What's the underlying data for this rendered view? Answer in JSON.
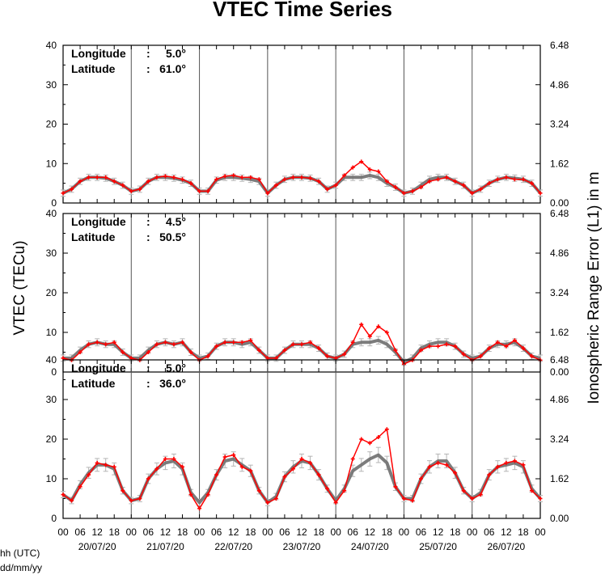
{
  "title": "VTEC Time Series",
  "ylabel_left": "VTEC (TECu)",
  "ylabel_right": "Ionospheric Range Error (L1) in m",
  "xlabel_hours": "hh (UTC)",
  "xlabel_dates": "dd/mm/yy",
  "colors": {
    "observed": "#ff0000",
    "reference": "#6e6e6e",
    "reference_error": "#b4b4b4"
  },
  "hour_ticks": [
    "00",
    "06",
    "12",
    "18"
  ],
  "last_hour_tick": "00",
  "date_labels": [
    "20/07/20",
    "21/07/20",
    "22/07/20",
    "23/07/20",
    "24/07/20",
    "25/07/20",
    "26/07/20"
  ],
  "left_ticks": [
    "0",
    "10",
    "20",
    "30",
    "40"
  ],
  "right_ticks": [
    "0.00",
    "1.62",
    "3.24",
    "4.86",
    "6.48"
  ],
  "panels": [
    {
      "lon_label": "Longitude",
      "lon_value": "5.0°",
      "lat_label": "Latitude",
      "lat_value": "61.0°"
    },
    {
      "lon_label": "Longitude",
      "lon_value": "4.5°",
      "lat_label": "Latitude",
      "lat_value": "50.5°"
    },
    {
      "lon_label": "Longitude",
      "lon_value": "5.0°",
      "lat_label": "Latitude",
      "lat_value": "36.0°"
    }
  ],
  "chart_data": {
    "type": "line",
    "title": "VTEC Time Series",
    "x_unit": "hours since 20/07/20 00 UTC",
    "xlim": [
      0,
      168
    ],
    "ylim": [
      0,
      40
    ],
    "y2lim": [
      0,
      6.48
    ],
    "y2label": "Ionospheric Range Error (L1) in m",
    "grid": "vertical lines at day boundaries",
    "panels": [
      {
        "longitude": "5.0°",
        "latitude": "61.0°",
        "series": [
          {
            "role": "observed",
            "x": [
              0,
              3,
              6,
              9,
              12,
              15,
              18,
              21,
              24,
              27,
              30,
              33,
              36,
              39,
              42,
              45,
              48,
              51,
              54,
              57,
              60,
              63,
              66,
              69,
              72,
              75,
              78,
              81,
              84,
              87,
              90,
              93,
              96,
              99,
              102,
              105,
              108,
              111,
              114,
              117,
              120,
              123,
              126,
              129,
              132,
              135,
              138,
              141,
              144,
              147,
              150,
              153,
              156,
              159,
              162,
              165,
              168
            ],
            "y": [
              2.5,
              3.5,
              5.5,
              6.5,
              6.5,
              6.5,
              5.5,
              4.5,
              3.0,
              3.5,
              5.5,
              6.5,
              6.8,
              6.5,
              6.0,
              5.0,
              3.0,
              3.0,
              6.0,
              6.8,
              7.0,
              6.5,
              6.5,
              6.0,
              2.5,
              4.5,
              6.0,
              6.5,
              6.5,
              6.3,
              5.5,
              3.5,
              4.5,
              7.0,
              9.0,
              10.5,
              8.5,
              8.0,
              5.5,
              4.0,
              2.5,
              3.0,
              4.0,
              5.5,
              6.0,
              6.5,
              5.5,
              4.5,
              2.5,
              3.5,
              5.0,
              6.0,
              6.5,
              6.0,
              6.0,
              5.0,
              2.5
            ]
          },
          {
            "role": "reference",
            "x": [
              0,
              3,
              6,
              9,
              12,
              15,
              18,
              21,
              24,
              27,
              30,
              33,
              36,
              39,
              42,
              45,
              48,
              51,
              54,
              57,
              60,
              63,
              66,
              69,
              72,
              75,
              78,
              81,
              84,
              87,
              90,
              93,
              96,
              99,
              102,
              105,
              108,
              111,
              114,
              117,
              120,
              123,
              126,
              129,
              132,
              135,
              138,
              141,
              144,
              147,
              150,
              153,
              156,
              159,
              162,
              165,
              168
            ],
            "y": [
              2.5,
              3.5,
              5.5,
              6.5,
              6.5,
              6.3,
              5.5,
              4.5,
              3.0,
              3.5,
              5.5,
              6.5,
              6.5,
              6.3,
              5.8,
              5.0,
              3.0,
              3.0,
              5.8,
              6.5,
              6.5,
              6.3,
              6.0,
              5.5,
              2.5,
              4.5,
              6.0,
              6.5,
              6.5,
              6.3,
              5.5,
              3.5,
              4.5,
              6.5,
              6.5,
              6.5,
              7.0,
              6.5,
              5.0,
              4.0,
              2.5,
              3.0,
              4.5,
              6.0,
              6.5,
              6.5,
              5.5,
              4.5,
              2.5,
              3.5,
              5.0,
              6.0,
              6.5,
              6.3,
              6.0,
              5.0,
              2.5
            ]
          }
        ]
      },
      {
        "longitude": "4.5°",
        "latitude": "50.5°",
        "series": [
          {
            "role": "observed",
            "x": [
              0,
              3,
              6,
              9,
              12,
              15,
              18,
              21,
              24,
              27,
              30,
              33,
              36,
              39,
              42,
              45,
              48,
              51,
              54,
              57,
              60,
              63,
              66,
              69,
              72,
              75,
              78,
              81,
              84,
              87,
              90,
              93,
              96,
              99,
              102,
              105,
              108,
              111,
              114,
              117,
              120,
              123,
              126,
              129,
              132,
              135,
              138,
              141,
              144,
              147,
              150,
              153,
              156,
              159,
              162,
              165,
              168
            ],
            "y": [
              3.5,
              3.0,
              5.0,
              7.0,
              7.5,
              7.0,
              7.5,
              5.0,
              3.5,
              3.0,
              5.0,
              7.0,
              7.5,
              7.0,
              7.5,
              5.0,
              3.0,
              4.0,
              6.5,
              7.5,
              7.5,
              7.5,
              8.0,
              5.5,
              3.5,
              3.5,
              5.5,
              7.0,
              7.0,
              7.5,
              6.0,
              4.0,
              3.5,
              4.5,
              7.5,
              12.0,
              9.0,
              11.5,
              10.0,
              5.5,
              2.0,
              3.0,
              5.5,
              6.5,
              6.5,
              7.0,
              6.5,
              4.5,
              3.0,
              4.0,
              6.0,
              7.5,
              6.5,
              8.0,
              6.0,
              4.0,
              3.0
            ]
          },
          {
            "role": "reference",
            "x": [
              0,
              3,
              6,
              9,
              12,
              15,
              18,
              21,
              24,
              27,
              30,
              33,
              36,
              39,
              42,
              45,
              48,
              51,
              54,
              57,
              60,
              63,
              66,
              69,
              72,
              75,
              78,
              81,
              84,
              87,
              90,
              93,
              96,
              99,
              102,
              105,
              108,
              111,
              114,
              117,
              120,
              123,
              126,
              129,
              132,
              135,
              138,
              141,
              144,
              147,
              150,
              153,
              156,
              159,
              162,
              165,
              168
            ],
            "y": [
              3.5,
              3.5,
              5.5,
              7.0,
              7.5,
              7.0,
              7.0,
              5.0,
              3.5,
              3.5,
              5.5,
              7.0,
              7.5,
              7.0,
              7.5,
              5.0,
              3.5,
              4.0,
              6.5,
              7.5,
              7.5,
              7.0,
              7.5,
              5.5,
              3.5,
              3.5,
              5.5,
              7.0,
              7.0,
              7.0,
              6.0,
              4.0,
              3.5,
              4.5,
              7.0,
              7.5,
              7.5,
              8.0,
              7.0,
              5.0,
              2.5,
              3.5,
              6.0,
              7.0,
              7.5,
              7.5,
              6.5,
              4.5,
              3.5,
              4.0,
              6.0,
              7.0,
              7.0,
              7.5,
              6.0,
              4.0,
              3.5
            ]
          }
        ]
      },
      {
        "longitude": "5.0°",
        "latitude": "36.0°",
        "series": [
          {
            "role": "observed",
            "x": [
              0,
              3,
              6,
              9,
              12,
              15,
              18,
              21,
              24,
              27,
              30,
              33,
              36,
              39,
              42,
              45,
              48,
              51,
              54,
              57,
              60,
              63,
              66,
              69,
              72,
              75,
              78,
              81,
              84,
              87,
              90,
              93,
              96,
              99,
              102,
              105,
              108,
              111,
              114,
              117,
              120,
              123,
              126,
              129,
              132,
              135,
              138,
              141,
              144,
              147,
              150,
              153,
              156,
              159,
              162,
              165,
              168
            ],
            "y": [
              6.0,
              4.5,
              8.0,
              11.0,
              14.0,
              13.5,
              13.0,
              7.0,
              4.5,
              5.0,
              10.0,
              12.5,
              15.0,
              15.0,
              13.0,
              6.0,
              2.5,
              6.0,
              11.0,
              15.5,
              16.0,
              13.0,
              12.0,
              7.0,
              4.0,
              5.0,
              10.5,
              12.5,
              15.0,
              14.0,
              11.0,
              7.5,
              4.0,
              7.0,
              15.0,
              20.0,
              19.0,
              20.5,
              22.5,
              8.0,
              5.0,
              4.5,
              10.0,
              13.0,
              14.0,
              13.5,
              11.5,
              7.0,
              5.0,
              6.0,
              11.0,
              13.0,
              14.0,
              14.5,
              13.5,
              7.0,
              5.0
            ]
          },
          {
            "role": "reference",
            "x": [
              0,
              3,
              6,
              9,
              12,
              15,
              18,
              21,
              24,
              27,
              30,
              33,
              36,
              39,
              42,
              45,
              48,
              51,
              54,
              57,
              60,
              63,
              66,
              69,
              72,
              75,
              78,
              81,
              84,
              87,
              90,
              93,
              96,
              99,
              102,
              105,
              108,
              111,
              114,
              117,
              120,
              123,
              126,
              129,
              132,
              135,
              138,
              141,
              144,
              147,
              150,
              153,
              156,
              159,
              162,
              165,
              168
            ],
            "y": [
              6.0,
              4.5,
              8.5,
              11.5,
              13.5,
              13.5,
              12.5,
              7.0,
              4.5,
              5.0,
              10.0,
              12.5,
              14.0,
              14.5,
              12.5,
              6.5,
              4.0,
              6.5,
              11.0,
              14.5,
              15.0,
              13.5,
              12.0,
              7.0,
              4.0,
              5.5,
              10.5,
              13.0,
              14.5,
              14.0,
              11.0,
              7.5,
              4.5,
              7.5,
              12.0,
              13.5,
              15.0,
              16.0,
              14.0,
              8.0,
              5.0,
              5.0,
              10.0,
              13.0,
              14.5,
              14.5,
              11.5,
              7.0,
              5.0,
              6.5,
              11.0,
              13.0,
              13.5,
              14.0,
              13.0,
              7.5,
              5.0
            ]
          }
        ]
      }
    ]
  }
}
